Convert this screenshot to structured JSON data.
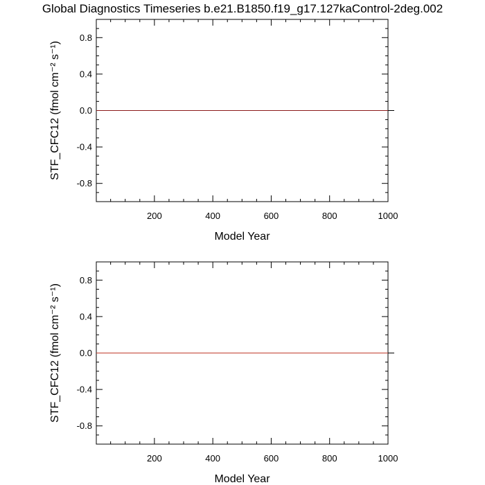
{
  "title": "Global Diagnostics Timeseries b.e21.B1850.f19_g17.127kaControl-2deg.002",
  "chart_data": [
    {
      "type": "line",
      "xlabel": "Model Year",
      "ylabel": "STF_CFC12 (fmol cm⁻² s⁻¹)",
      "xlim": [
        1,
        1000
      ],
      "ylim": [
        -1.0,
        1.0
      ],
      "x_ticks": [
        200,
        400,
        600,
        800,
        1000
      ],
      "x_tick_labels": [
        "200",
        "400",
        "600",
        "800",
        "1000"
      ],
      "y_ticks": [
        0.8,
        0.4,
        0.0,
        -0.4,
        -0.8
      ],
      "y_tick_labels": [
        "0.8",
        "0.4",
        "0.0",
        "-0.4",
        "-0.8"
      ],
      "reference_line": 0.0,
      "series": [
        {
          "x": [
            1,
            1000
          ],
          "values": [
            0.0,
            0.0
          ],
          "color": "#8b1a1a"
        }
      ]
    },
    {
      "type": "line",
      "xlabel": "Model Year",
      "ylabel": "STF_CFC12 (fmol cm⁻² s⁻¹)",
      "xlim": [
        1,
        1000
      ],
      "ylim": [
        -1.0,
        1.0
      ],
      "x_ticks": [
        200,
        400,
        600,
        800,
        1000
      ],
      "x_tick_labels": [
        "200",
        "400",
        "600",
        "800",
        "1000"
      ],
      "y_ticks": [
        0.8,
        0.4,
        0.0,
        -0.4,
        -0.8
      ],
      "y_tick_labels": [
        "0.8",
        "0.4",
        "0.0",
        "-0.4",
        "-0.8"
      ],
      "reference_line": 0.0,
      "series": [
        {
          "x": [
            1,
            1000
          ],
          "values": [
            0.0,
            0.0
          ],
          "color": "#c0392b"
        }
      ]
    }
  ]
}
